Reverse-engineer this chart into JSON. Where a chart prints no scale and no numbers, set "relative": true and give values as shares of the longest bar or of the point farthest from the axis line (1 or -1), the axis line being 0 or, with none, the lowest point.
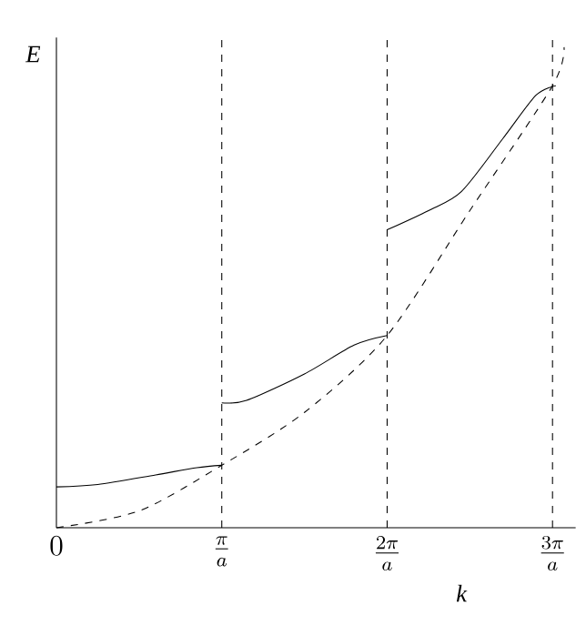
{
  "chart_data": {
    "type": "line",
    "relative": true,
    "xlabel": "k",
    "ylabel": "E",
    "xlim": [
      0,
      3.14
    ],
    "xticks": [
      {
        "value": 0,
        "label": "0"
      },
      {
        "value": 1,
        "label": "\\frac{\\pi}{a}"
      },
      {
        "value": 2,
        "label": "\\frac{2\\pi}{a}"
      },
      {
        "value": 3,
        "label": "\\frac{3\\pi}{a}"
      }
    ],
    "series": [
      {
        "color": "#000000",
        "line_style": "solid",
        "x": [
          0,
          0.25,
          0.6,
          0.85,
          1
        ],
        "values": [
          0.085,
          0.09,
          0.11,
          0.125,
          0.13
        ]
      },
      {
        "color": "#000000",
        "line_style": "solid",
        "x": [
          1,
          1.15,
          1.5,
          1.8,
          2
        ],
        "values": [
          0.26,
          0.265,
          0.32,
          0.38,
          0.4
        ]
      },
      {
        "color": "#000000",
        "line_style": "solid",
        "x": [
          2,
          2.25,
          2.45,
          2.7,
          2.9,
          3.02
        ],
        "values": [
          0.62,
          0.66,
          0.7,
          0.81,
          0.9,
          0.92
        ]
      },
      {
        "color": "#000000",
        "line_style": "dashed",
        "x": [
          0,
          0.5,
          1,
          1.5,
          2,
          2.5,
          3,
          3.07
        ],
        "values": [
          0,
          0.035,
          0.13,
          0.24,
          0.4,
          0.66,
          0.92,
          1.0
        ]
      }
    ],
    "ref_lines": [
      {
        "axis": "x",
        "value": 1,
        "color": "#000000",
        "line_style": "dashed"
      },
      {
        "axis": "x",
        "value": 2,
        "color": "#000000",
        "line_style": "dashed"
      },
      {
        "axis": "x",
        "value": 3,
        "color": "#000000",
        "line_style": "dashed"
      }
    ]
  }
}
